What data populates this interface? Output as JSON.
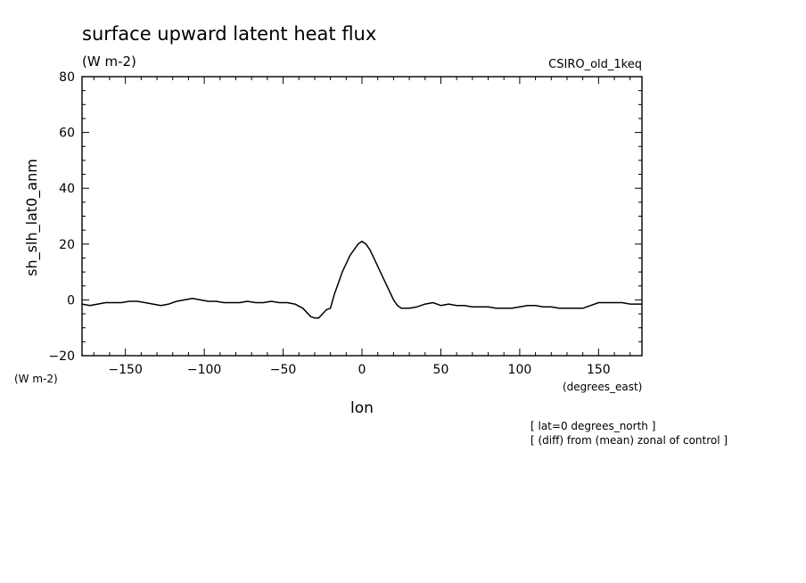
{
  "chart_data": {
    "type": "line",
    "title": "surface upward latent heat flux",
    "units_label": "(W m-2)",
    "model_label": "CSIRO_old_1keq",
    "ylabel": "sh_slh_lat0_anm",
    "ylabel_units": "(W m-2)",
    "xlabel": "lon",
    "xlabel_units": "(degrees_east)",
    "xlim": [
      -177.5,
      177.5
    ],
    "ylim": [
      -20,
      80
    ],
    "xticks": [
      -150,
      -100,
      -50,
      0,
      50,
      100,
      150
    ],
    "yticks": [
      -20,
      0,
      20,
      40,
      60,
      80
    ],
    "notes": [
      "[ lat=0 degrees_north ]",
      "[ (diff) from (mean) zonal of control ]"
    ],
    "line_color": "#000000",
    "grid": false,
    "x": [
      -177.5,
      -172.5,
      -167.5,
      -162.5,
      -157.5,
      -152.5,
      -147.5,
      -142.5,
      -137.5,
      -132.5,
      -127.5,
      -122.5,
      -117.5,
      -112.5,
      -107.5,
      -102.5,
      -97.5,
      -92.5,
      -87.5,
      -82.5,
      -77.5,
      -72.5,
      -67.5,
      -62.5,
      -57.5,
      -52.5,
      -47.5,
      -42.5,
      -37.5,
      -32.5,
      -30,
      -27.5,
      -25,
      -22.5,
      -20,
      -17.5,
      -15,
      -12.5,
      -10,
      -7.5,
      -5,
      -2.5,
      0,
      2.5,
      5,
      7.5,
      10,
      12.5,
      15,
      17.5,
      20,
      22.5,
      25,
      27.5,
      30,
      35,
      40,
      45,
      50,
      55,
      60,
      65,
      70,
      75,
      80,
      85,
      90,
      95,
      100,
      105,
      110,
      115,
      120,
      125,
      130,
      135,
      140,
      145,
      150,
      155,
      160,
      165,
      170,
      175,
      177.5
    ],
    "y": [
      -1.5,
      -2,
      -1.5,
      -1,
      -1,
      -1,
      -0.5,
      -0.5,
      -1,
      -1.5,
      -2,
      -1.5,
      -0.5,
      0,
      0.5,
      0,
      -0.5,
      -0.5,
      -1,
      -1,
      -1,
      -0.5,
      -1,
      -1,
      -0.5,
      -1,
      -1,
      -1.5,
      -3,
      -6,
      -6.5,
      -6.5,
      -5,
      -3.5,
      -3,
      2,
      6,
      10,
      13,
      16,
      18,
      20,
      21,
      20,
      18,
      15,
      12,
      9,
      6,
      3,
      0,
      -2,
      -3,
      -3,
      -3,
      -2.5,
      -1.5,
      -1,
      -2,
      -1.5,
      -2,
      -2,
      -2.5,
      -2.5,
      -2.5,
      -3,
      -3,
      -3,
      -2.5,
      -2,
      -2,
      -2.5,
      -2.5,
      -3,
      -3,
      -3,
      -3,
      -2,
      -1,
      -1,
      -1,
      -1,
      -1.5,
      -1.5,
      -1.5
    ]
  }
}
